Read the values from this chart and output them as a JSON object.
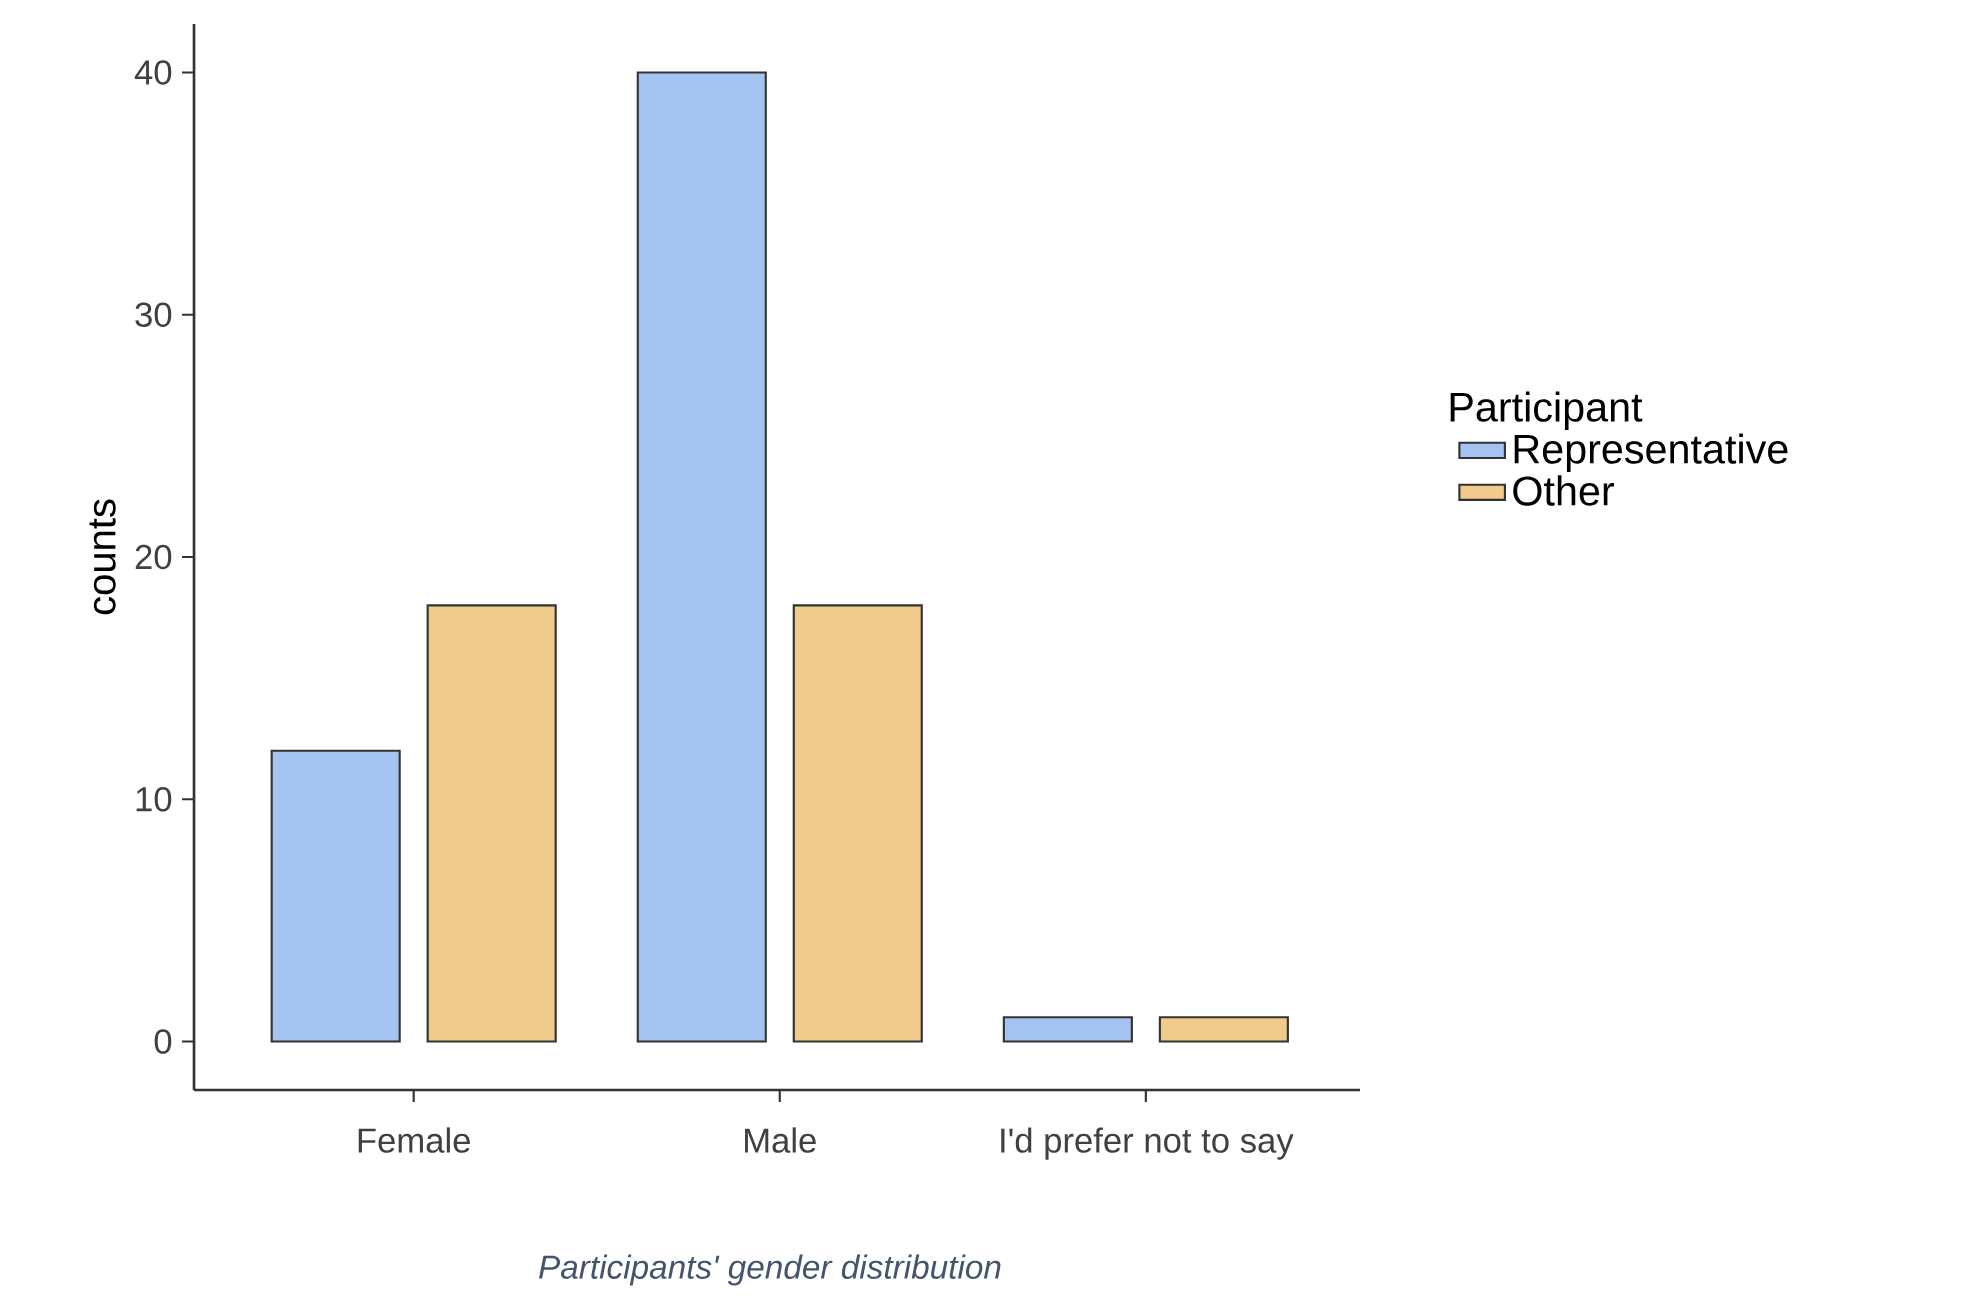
{
  "chart_data": {
    "type": "bar",
    "categories": [
      "Female",
      "Male",
      "I'd prefer not to say"
    ],
    "series": [
      {
        "name": "Representative",
        "color": "#a4c3f0",
        "values": [
          12,
          40,
          1
        ]
      },
      {
        "name": "Other",
        "color": "#f0cb8c",
        "values": [
          18,
          18,
          1
        ]
      }
    ],
    "ylabel": "counts",
    "legend_title": "Participant",
    "legend": "right",
    "ylim": [
      -2,
      42
    ],
    "yticks": [
      0,
      10,
      20,
      30,
      40
    ],
    "annotations": [
      "Participants' gender distribution"
    ]
  }
}
